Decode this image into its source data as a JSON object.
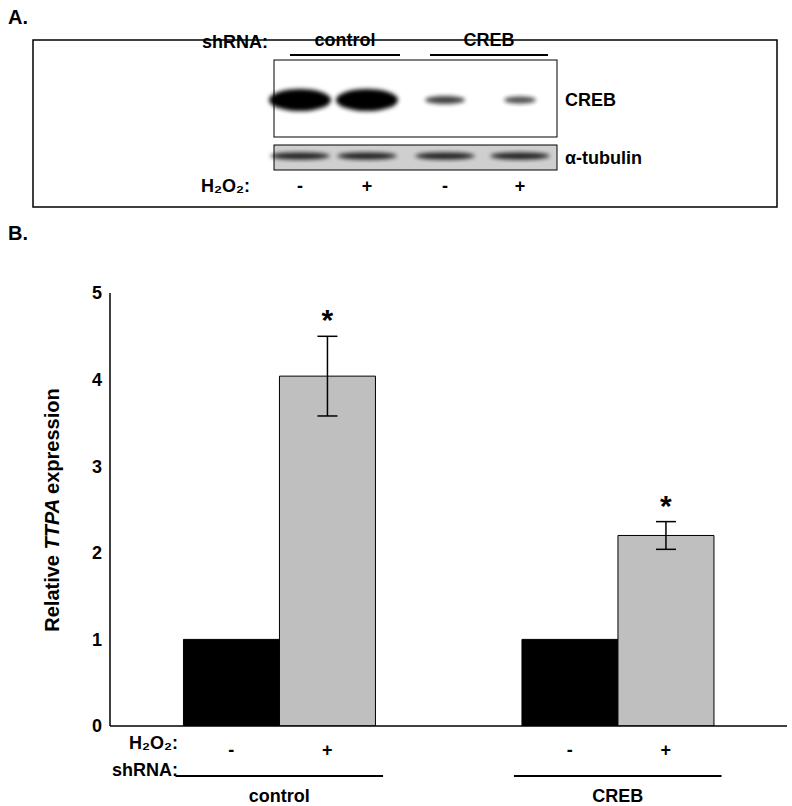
{
  "panel_a": {
    "label": "A.",
    "row_label": "shRNA:",
    "groups": [
      "control",
      "CREB"
    ],
    "bands": [
      "CREB",
      "α-tubulin"
    ],
    "treatment_label": "H₂O₂:",
    "treatment": [
      "-",
      "+",
      "-",
      "+"
    ]
  },
  "panel_b": {
    "label": "B."
  },
  "chart_data": {
    "type": "bar",
    "y_label": "Relative TTPA expression",
    "series_label": "H₂O₂:",
    "x_label": "shRNA:",
    "categories": [
      "control",
      "CREB"
    ],
    "series": [
      {
        "name": "-",
        "color": "#000000",
        "values": [
          1,
          1
        ],
        "errors": [
          0,
          0
        ]
      },
      {
        "name": "+",
        "color": "#bfbfbf",
        "values": [
          4.04,
          2.2
        ],
        "errors": [
          0.46,
          0.16
        ],
        "annotations": [
          "*",
          "*"
        ]
      }
    ],
    "ylim": [
      0,
      5
    ],
    "yticks": [
      0,
      1,
      2,
      3,
      4,
      5
    ],
    "grid": false
  }
}
